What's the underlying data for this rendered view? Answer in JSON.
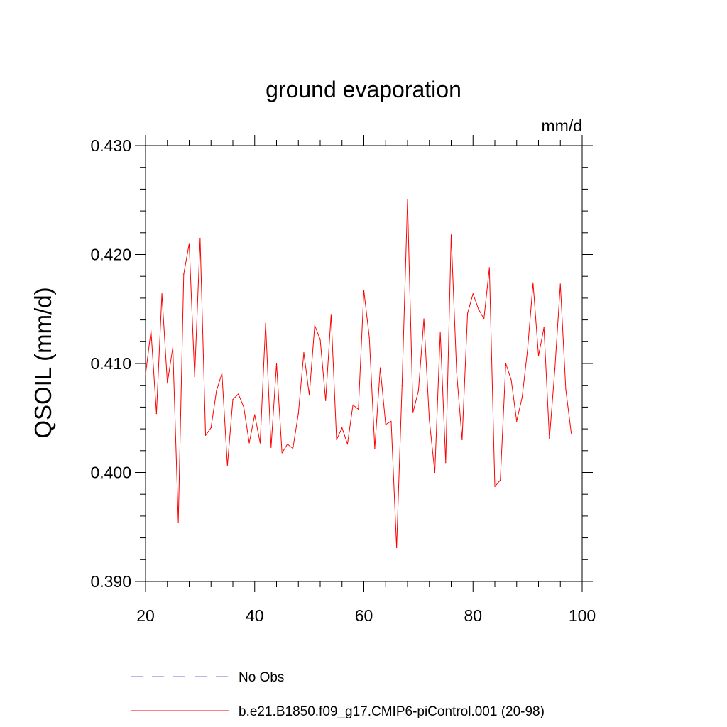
{
  "chart_data": {
    "type": "line",
    "title": "ground evaporation",
    "units": "mm/d",
    "ylabel": "QSOIL  (mm/d)",
    "xlabel": "",
    "xlim": [
      20,
      100
    ],
    "ylim": [
      0.39,
      0.43
    ],
    "xticks": [
      20,
      40,
      60,
      80,
      100
    ],
    "yticks": [
      "0.390",
      "0.400",
      "0.410",
      "0.420",
      "0.430"
    ],
    "grid": false,
    "legend_position": "bottom",
    "series": [
      {
        "name": "No Obs",
        "color": "#7b68d8",
        "style": "dashed",
        "x": [],
        "values": []
      },
      {
        "name": "b.e21.B1850.f09_g17.CMIP6-piControl.001 (20-98)",
        "color": "#ff0000",
        "style": "solid",
        "x": [
          20,
          21,
          22,
          23,
          24,
          25,
          26,
          27,
          28,
          29,
          30,
          31,
          32,
          33,
          34,
          35,
          36,
          37,
          38,
          39,
          40,
          41,
          42,
          43,
          44,
          45,
          46,
          47,
          48,
          49,
          50,
          51,
          52,
          53,
          54,
          55,
          56,
          57,
          58,
          59,
          60,
          61,
          62,
          63,
          64,
          65,
          66,
          67,
          68,
          69,
          70,
          71,
          72,
          73,
          74,
          75,
          76,
          77,
          78,
          79,
          80,
          81,
          82,
          83,
          84,
          85,
          86,
          87,
          88,
          89,
          90,
          91,
          92,
          93,
          94,
          95,
          96,
          97,
          98
        ],
        "values": [
          0.409,
          0.413,
          0.4054,
          0.4164,
          0.4082,
          0.4115,
          0.3954,
          0.4182,
          0.421,
          0.4088,
          0.4215,
          0.4034,
          0.4041,
          0.4075,
          0.4091,
          0.4006,
          0.4067,
          0.4072,
          0.406,
          0.4027,
          0.4053,
          0.4027,
          0.4137,
          0.4023,
          0.41,
          0.4018,
          0.4026,
          0.4022,
          0.4054,
          0.411,
          0.4071,
          0.4135,
          0.4122,
          0.4066,
          0.4145,
          0.403,
          0.4041,
          0.4026,
          0.4062,
          0.4058,
          0.4167,
          0.4124,
          0.4022,
          0.4096,
          0.4044,
          0.4047,
          0.3931,
          0.408,
          0.425,
          0.4055,
          0.4075,
          0.4141,
          0.4048,
          0.4,
          0.4129,
          0.4009,
          0.4218,
          0.4092,
          0.403,
          0.4146,
          0.4164,
          0.415,
          0.4141,
          0.4188,
          0.3987,
          0.3993,
          0.41,
          0.4085,
          0.4047,
          0.4069,
          0.4113,
          0.4174,
          0.4107,
          0.4133,
          0.4031,
          0.4095,
          0.4173,
          0.4076,
          0.4036
        ]
      }
    ]
  }
}
